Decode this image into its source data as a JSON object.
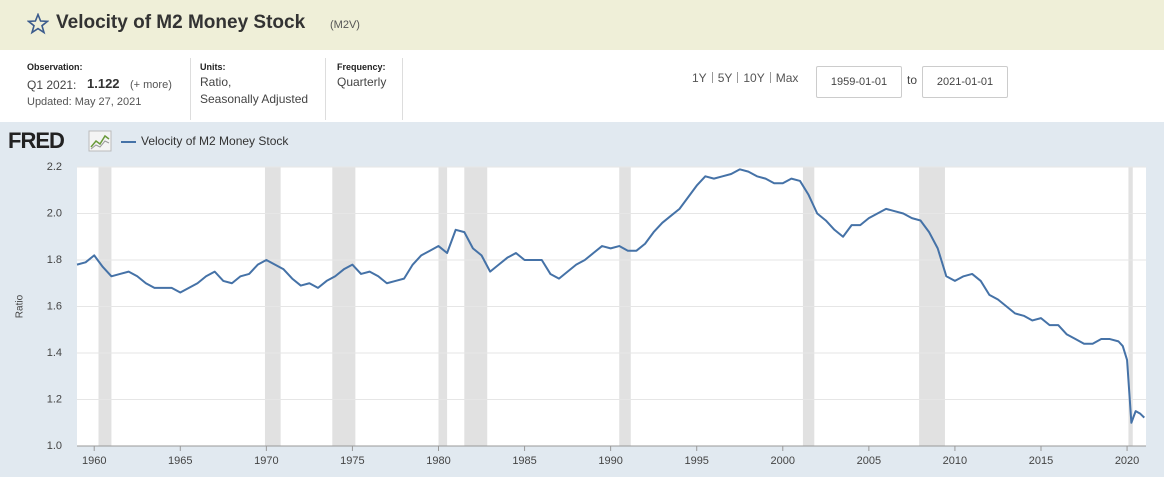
{
  "header": {
    "title": "Velocity of M2 Money Stock",
    "series_id": "(M2V)"
  },
  "info": {
    "observation": {
      "label": "Observation:",
      "period": "Q1 2021:",
      "value": "1.122",
      "more": "(+ more)",
      "updated": "Updated: May 27, 2021"
    },
    "units": {
      "label": "Units:",
      "lines": [
        "Ratio,",
        "Seasonally Adjusted"
      ]
    },
    "frequency": {
      "label": "Frequency:",
      "value": "Quarterly"
    }
  },
  "range": {
    "buttons": [
      "1Y",
      "5Y",
      "10Y",
      "Max"
    ],
    "start": "1959-01-01",
    "to": "to",
    "end": "2021-01-01"
  },
  "logo": "FRED",
  "chart_data": {
    "type": "line",
    "ylabel": "Ratio",
    "x": [
      1959.0,
      1959.5,
      1960.0,
      1960.5,
      1961.0,
      1961.5,
      1962.0,
      1962.5,
      1963.0,
      1963.5,
      1964.0,
      1964.5,
      1965.0,
      1965.5,
      1966.0,
      1966.5,
      1967.0,
      1967.5,
      1968.0,
      1968.5,
      1969.0,
      1969.5,
      1970.0,
      1970.5,
      1971.0,
      1971.5,
      1972.0,
      1972.5,
      1973.0,
      1973.5,
      1974.0,
      1974.5,
      1975.0,
      1975.5,
      1976.0,
      1976.5,
      1977.0,
      1977.5,
      1978.0,
      1978.5,
      1979.0,
      1979.5,
      1980.0,
      1980.5,
      1981.0,
      1981.5,
      1982.0,
      1982.5,
      1983.0,
      1983.5,
      1984.0,
      1984.5,
      1985.0,
      1985.5,
      1986.0,
      1986.5,
      1987.0,
      1987.5,
      1988.0,
      1988.5,
      1989.0,
      1989.5,
      1990.0,
      1990.5,
      1991.0,
      1991.5,
      1992.0,
      1992.5,
      1993.0,
      1993.5,
      1994.0,
      1994.5,
      1995.0,
      1995.5,
      1996.0,
      1996.5,
      1997.0,
      1997.5,
      1998.0,
      1998.5,
      1999.0,
      1999.5,
      2000.0,
      2000.5,
      2001.0,
      2001.5,
      2002.0,
      2002.5,
      2003.0,
      2003.5,
      2004.0,
      2004.5,
      2005.0,
      2005.5,
      2006.0,
      2006.5,
      2007.0,
      2007.5,
      2008.0,
      2008.5,
      2009.0,
      2009.5,
      2010.0,
      2010.5,
      2011.0,
      2011.5,
      2012.0,
      2012.5,
      2013.0,
      2013.5,
      2014.0,
      2014.5,
      2015.0,
      2015.5,
      2016.0,
      2016.5,
      2017.0,
      2017.5,
      2018.0,
      2018.5,
      2019.0,
      2019.5,
      2019.75,
      2020.0,
      2020.25,
      2020.5,
      2020.75,
      2021.0
    ],
    "series": [
      {
        "name": "Velocity of M2 Money Stock",
        "color": "#4572a7",
        "values": [
          1.78,
          1.79,
          1.82,
          1.77,
          1.73,
          1.74,
          1.75,
          1.73,
          1.7,
          1.68,
          1.68,
          1.68,
          1.66,
          1.68,
          1.7,
          1.73,
          1.75,
          1.71,
          1.7,
          1.73,
          1.74,
          1.78,
          1.8,
          1.78,
          1.76,
          1.72,
          1.69,
          1.7,
          1.68,
          1.71,
          1.73,
          1.76,
          1.78,
          1.74,
          1.75,
          1.73,
          1.7,
          1.71,
          1.72,
          1.78,
          1.82,
          1.84,
          1.86,
          1.83,
          1.93,
          1.92,
          1.85,
          1.82,
          1.75,
          1.78,
          1.81,
          1.83,
          1.8,
          1.8,
          1.8,
          1.74,
          1.72,
          1.75,
          1.78,
          1.8,
          1.83,
          1.86,
          1.85,
          1.86,
          1.84,
          1.84,
          1.87,
          1.92,
          1.96,
          1.99,
          2.02,
          2.07,
          2.12,
          2.16,
          2.15,
          2.16,
          2.17,
          2.19,
          2.18,
          2.16,
          2.15,
          2.13,
          2.13,
          2.15,
          2.14,
          2.08,
          2.0,
          1.97,
          1.93,
          1.9,
          1.95,
          1.95,
          1.98,
          2.0,
          2.02,
          2.01,
          2.0,
          1.98,
          1.97,
          1.92,
          1.85,
          1.73,
          1.71,
          1.73,
          1.74,
          1.71,
          1.65,
          1.63,
          1.6,
          1.57,
          1.56,
          1.54,
          1.55,
          1.52,
          1.52,
          1.48,
          1.46,
          1.44,
          1.44,
          1.46,
          1.46,
          1.45,
          1.43,
          1.37,
          1.1,
          1.15,
          1.14,
          1.122
        ]
      }
    ],
    "recessions": [
      {
        "start": 1960.25,
        "end": 1961.0
      },
      {
        "start": 1969.92,
        "end": 1970.83
      },
      {
        "start": 1973.83,
        "end": 1975.17
      },
      {
        "start": 1980.0,
        "end": 1980.5
      },
      {
        "start": 1981.5,
        "end": 1982.83
      },
      {
        "start": 1990.5,
        "end": 1991.17
      },
      {
        "start": 2001.17,
        "end": 2001.83
      },
      {
        "start": 2007.92,
        "end": 2009.42
      },
      {
        "start": 2020.08,
        "end": 2020.33
      }
    ],
    "recession_color": "#e1e1e1",
    "xlim": [
      1959.0,
      2021.1
    ],
    "ylim": [
      1.0,
      2.2
    ],
    "xticks": [
      1960,
      1965,
      1970,
      1975,
      1980,
      1985,
      1990,
      1995,
      2000,
      2005,
      2010,
      2015,
      2020
    ],
    "yticks": [
      {
        "value": 1,
        "label": "1.0"
      },
      1.2,
      1.4,
      1.6,
      1.8,
      {
        "value": 2,
        "label": "2.0"
      },
      2.2
    ],
    "grid": true
  }
}
